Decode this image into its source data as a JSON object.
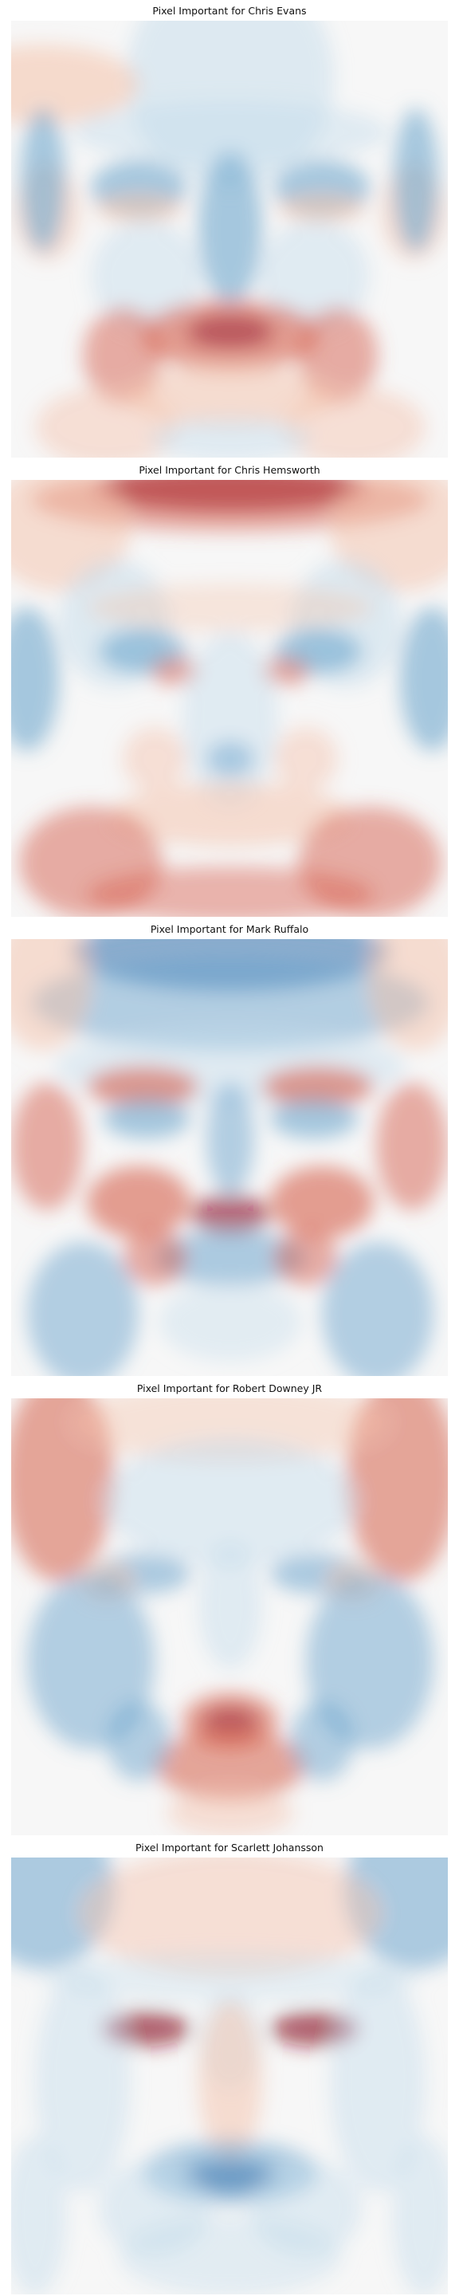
{
  "chart_data": [
    {
      "type": "heatmap",
      "title": "Pixel Important for Chris Evans",
      "colormap": "RdBu_r",
      "axes_visible": false,
      "description": "Face-shaped importance map: red on cheek edges and around mouth/mustache, blue on nose, eyes and cheeks"
    },
    {
      "type": "heatmap",
      "title": "Pixel Important for Chris Hemsworth",
      "colormap": "RdBu_r",
      "axes_visible": false,
      "description": "Strong red band at top hairline, blue at sides and under eyes, red around chin and lower cheeks"
    },
    {
      "type": "heatmap",
      "title": "Pixel Important for Mark Ruffalo",
      "colormap": "RdBu_r",
      "axes_visible": false,
      "description": "Blue forehead top, red brows and cheeks, dark red spot at nose tip, blue mustache band"
    },
    {
      "type": "heatmap",
      "title": "Pixel Important for Robert Downey JR",
      "colormap": "RdBu_r",
      "axes_visible": false,
      "description": "Red temples at top corners, blue cheeks, red vertical region at mouth and chin"
    },
    {
      "type": "heatmap",
      "title": "Pixel Important for Scarlett Johansson",
      "colormap": "RdBu_r",
      "axes_visible": false,
      "description": "Blue top corners, light red forehead, dark red eyes, red nose, strong blue mouth region"
    }
  ],
  "colors": {
    "red_strong": "#8b0a26",
    "red_mid": "#d6604d",
    "red_light": "#f4c2aa",
    "neutral": "#f7f7f7",
    "blue_light": "#c4dcec",
    "blue_mid": "#6ea6cd",
    "blue_strong": "#2f6fab"
  }
}
